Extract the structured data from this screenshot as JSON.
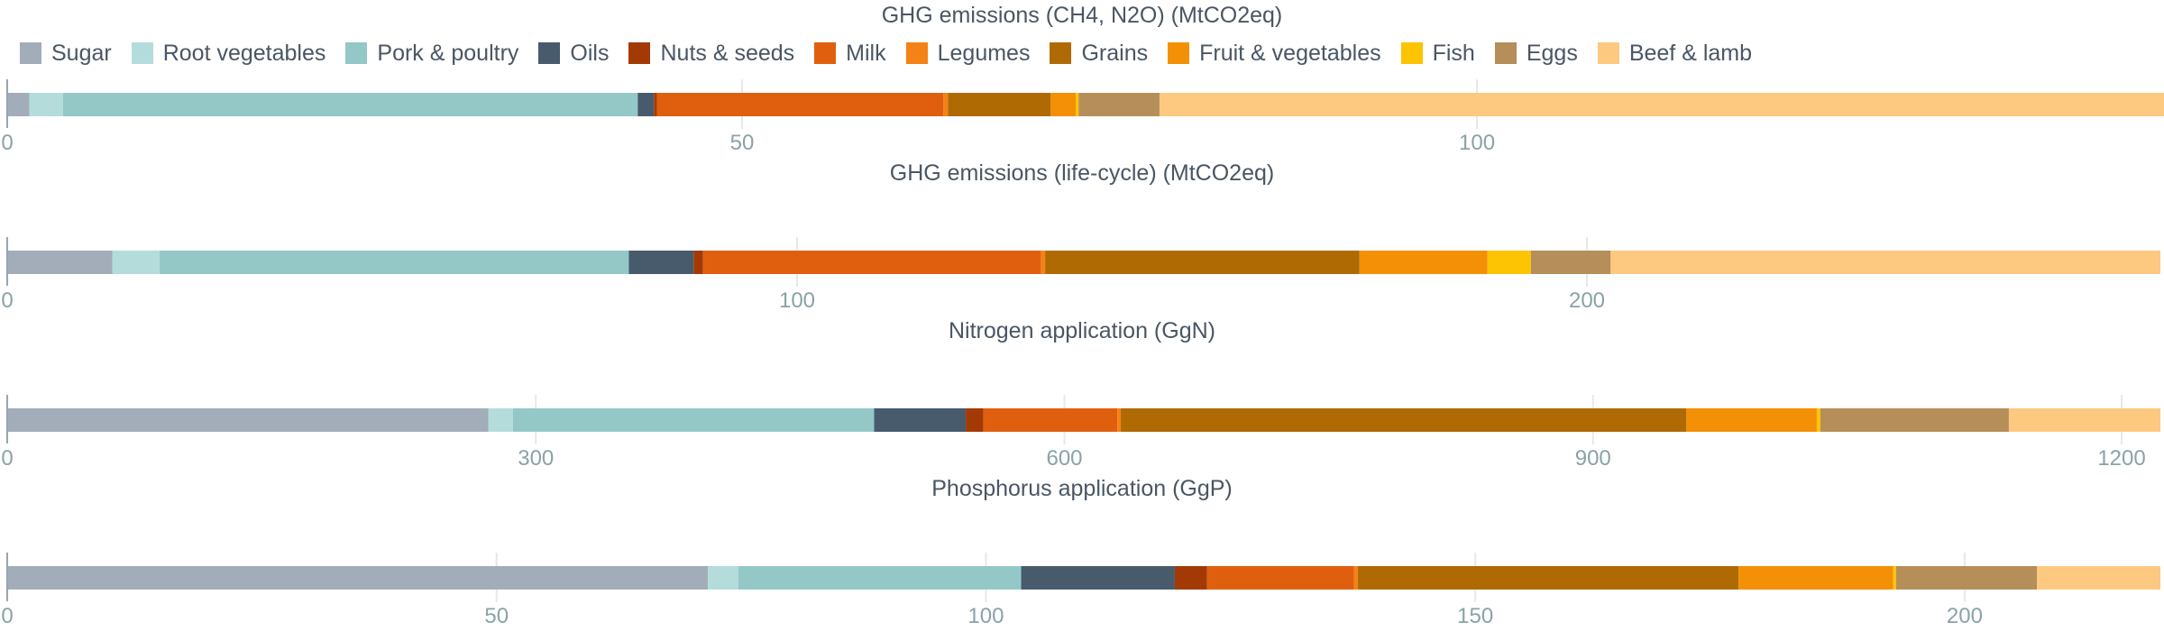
{
  "legend": [
    {
      "label": "Sugar",
      "color": "#a2adb9"
    },
    {
      "label": "Root vegetables",
      "color": "#b3dcda"
    },
    {
      "label": "Pork & poultry",
      "color": "#93c8c7"
    },
    {
      "label": "Oils",
      "color": "#475b6c"
    },
    {
      "label": "Nuts & seeds",
      "color": "#a33a05"
    },
    {
      "label": "Milk",
      "color": "#e05f0e"
    },
    {
      "label": "Legumes",
      "color": "#f58216"
    },
    {
      "label": "Grains",
      "color": "#b06a04"
    },
    {
      "label": "Fruit & vegetables",
      "color": "#f39005"
    },
    {
      "label": "Fish",
      "color": "#fdc403"
    },
    {
      "label": "Eggs",
      "color": "#b58e59"
    },
    {
      "label": "Beef & lamb",
      "color": "#fdc980"
    }
  ],
  "chart_data": [
    {
      "type": "bar",
      "orientation": "horizontal-stacked",
      "title": "GHG emissions (CH4, N2O) (MtCO2eq)",
      "xlim": [
        0,
        146.5
      ],
      "ticks": [
        0,
        50,
        100
      ],
      "grid": true,
      "series": [
        {
          "name": "Sugar",
          "values": [
            1.5
          ]
        },
        {
          "name": "Root vegetables",
          "values": [
            2.3
          ]
        },
        {
          "name": "Pork & poultry",
          "values": [
            39.1
          ]
        },
        {
          "name": "Oils",
          "values": [
            1.1
          ]
        },
        {
          "name": "Nuts & seeds",
          "values": [
            0.2
          ]
        },
        {
          "name": "Milk",
          "values": [
            19.5
          ]
        },
        {
          "name": "Legumes",
          "values": [
            0.3
          ]
        },
        {
          "name": "Grains",
          "values": [
            7.0
          ]
        },
        {
          "name": "Fruit & vegetables",
          "values": [
            1.7
          ]
        },
        {
          "name": "Fish",
          "values": [
            0.2
          ]
        },
        {
          "name": "Eggs",
          "values": [
            5.5
          ]
        },
        {
          "name": "Beef & lamb",
          "values": [
            68.4
          ]
        }
      ]
    },
    {
      "type": "bar",
      "orientation": "horizontal-stacked",
      "title": "GHG emissions (life-cycle) (MtCO2eq)",
      "xlim": [
        0,
        272.6
      ],
      "ticks": [
        0,
        100,
        200
      ],
      "grid": true,
      "series": [
        {
          "name": "Sugar",
          "values": [
            13.3
          ]
        },
        {
          "name": "Root vegetables",
          "values": [
            6.0
          ]
        },
        {
          "name": "Pork & poultry",
          "values": [
            59.4
          ]
        },
        {
          "name": "Oils",
          "values": [
            8.2
          ]
        },
        {
          "name": "Nuts & seeds",
          "values": [
            1.2
          ]
        },
        {
          "name": "Milk",
          "values": [
            42.8
          ]
        },
        {
          "name": "Legumes",
          "values": [
            0.5
          ]
        },
        {
          "name": "Grains",
          "values": [
            39.8
          ]
        },
        {
          "name": "Fruit & vegetables",
          "values": [
            16.2
          ]
        },
        {
          "name": "Fish",
          "values": [
            5.5
          ]
        },
        {
          "name": "Eggs",
          "values": [
            10.1
          ]
        },
        {
          "name": "Beef & lamb",
          "values": [
            69.6
          ]
        }
      ]
    },
    {
      "type": "bar",
      "orientation": "horizontal-stacked",
      "title": "Nitrogen application (GgN)",
      "xlim": [
        0,
        1222
      ],
      "ticks": [
        0,
        300,
        600,
        900,
        1200
      ],
      "grid": true,
      "series": [
        {
          "name": "Sugar",
          "values": [
            273
          ]
        },
        {
          "name": "Root vegetables",
          "values": [
            14
          ]
        },
        {
          "name": "Pork & poultry",
          "values": [
            205
          ]
        },
        {
          "name": "Oils",
          "values": [
            52
          ]
        },
        {
          "name": "Nuts & seeds",
          "values": [
            10
          ]
        },
        {
          "name": "Milk",
          "values": [
            76
          ]
        },
        {
          "name": "Legumes",
          "values": [
            2
          ]
        },
        {
          "name": "Grains",
          "values": [
            321
          ]
        },
        {
          "name": "Fruit & vegetables",
          "values": [
            74
          ]
        },
        {
          "name": "Fish",
          "values": [
            2
          ]
        },
        {
          "name": "Eggs",
          "values": [
            107
          ]
        },
        {
          "name": "Beef & lamb",
          "values": [
            86
          ]
        }
      ]
    },
    {
      "type": "bar",
      "orientation": "horizontal-stacked",
      "title": "Phosphorus application (GgP)",
      "xlim": [
        0,
        220
      ],
      "ticks": [
        0,
        50,
        100,
        150,
        200
      ],
      "grid": true,
      "series": [
        {
          "name": "Sugar",
          "values": [
            71.6
          ]
        },
        {
          "name": "Root vegetables",
          "values": [
            3.1
          ]
        },
        {
          "name": "Pork & poultry",
          "values": [
            28.9
          ]
        },
        {
          "name": "Oils",
          "values": [
            15.7
          ]
        },
        {
          "name": "Nuts & seeds",
          "values": [
            3.3
          ]
        },
        {
          "name": "Milk",
          "values": [
            15.0
          ]
        },
        {
          "name": "Legumes",
          "values": [
            0.4
          ]
        },
        {
          "name": "Grains",
          "values": [
            38.9
          ]
        },
        {
          "name": "Fruit & vegetables",
          "values": [
            15.8
          ]
        },
        {
          "name": "Fish",
          "values": [
            0.3
          ]
        },
        {
          "name": "Eggs",
          "values": [
            14.4
          ]
        },
        {
          "name": "Beef & lamb",
          "values": [
            12.6
          ]
        }
      ]
    }
  ]
}
